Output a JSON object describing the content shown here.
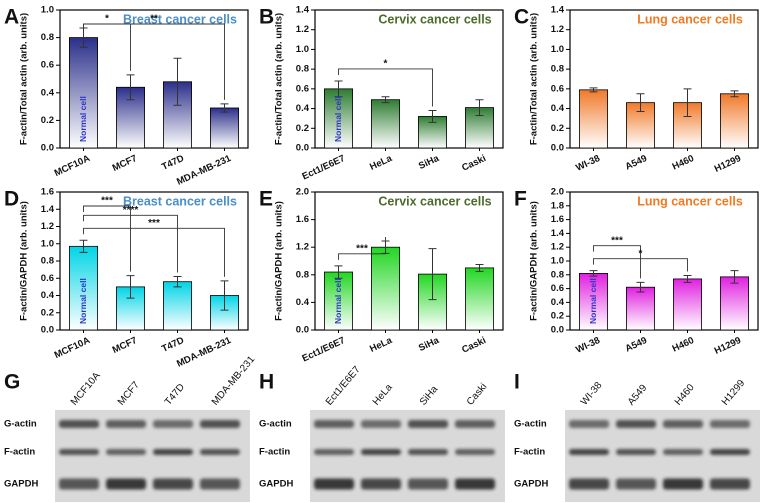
{
  "chart_data": [
    {
      "type": "bar",
      "panel": "A",
      "title": "Breast cancer cells",
      "title_color": "#4a8ec8",
      "ylabel": "F-actin/Total actin (arb. units)",
      "categories": [
        "MCF10A",
        "MCF7",
        "T47D",
        "MDA-MB-231"
      ],
      "values": [
        0.8,
        0.44,
        0.48,
        0.29
      ],
      "errors": [
        0.07,
        0.09,
        0.17,
        0.03
      ],
      "color": "#2b2f8a",
      "ylim": [
        0,
        1.0
      ],
      "yticks": [
        {
          "value": 0,
          "label": "0.0"
        },
        0.2,
        0.4,
        0.6,
        0.8,
        {
          "value": 1,
          "label": "1.0"
        }
      ],
      "bar_note": "Normal cell",
      "annotations": [
        {
          "from": "MCF10A",
          "to": "MCF7",
          "label": "*"
        },
        {
          "from": "MCF10A",
          "to": "MDA-MB-231",
          "label": "**"
        }
      ]
    },
    {
      "type": "bar",
      "panel": "B",
      "title": "Cervix cancer cells",
      "title_color": "#4b6b2a",
      "ylabel": "F-actin/Total actin (arb. units)",
      "categories": [
        "Ect1/E6E7",
        "HeLa",
        "SiHa",
        "Caski"
      ],
      "values": [
        0.6,
        0.49,
        0.32,
        0.41
      ],
      "errors": [
        0.08,
        0.03,
        0.06,
        0.08
      ],
      "color": "#2e7d32",
      "ylim": [
        0,
        1.4
      ],
      "yticks": [
        {
          "value": 0,
          "label": "0.0"
        },
        0.2,
        0.4,
        0.6,
        0.8,
        {
          "value": 1,
          "label": "1.0"
        },
        1.2,
        1.4
      ],
      "bar_note": "Normal cell",
      "annotations": [
        {
          "from": "Ect1/E6E7",
          "to": "SiHa",
          "label": "*"
        }
      ]
    },
    {
      "type": "bar",
      "panel": "C",
      "title": "Lung cancer cells",
      "title_color": "#f07a20",
      "ylabel": "F-actin/Total actin (arb. units)",
      "categories": [
        "WI-38",
        "A549",
        "H460",
        "H1299"
      ],
      "values": [
        0.59,
        0.46,
        0.46,
        0.55
      ],
      "errors": [
        0.02,
        0.09,
        0.14,
        0.03
      ],
      "color": "#f07a2a",
      "ylim": [
        0,
        1.4
      ],
      "yticks": [
        {
          "value": 0,
          "label": "0.0"
        },
        0.2,
        0.4,
        0.6,
        0.8,
        {
          "value": 1,
          "label": "1.0"
        },
        1.2,
        1.4
      ],
      "annotations": []
    },
    {
      "type": "bar",
      "panel": "D",
      "title": "Breast cancer cells",
      "title_color": "#4a8ec8",
      "ylabel": "F-actin/GAPDH (arb. units)",
      "categories": [
        "MCF10A",
        "MCF7",
        "T47D",
        "MDA-MB-231"
      ],
      "values": [
        0.97,
        0.5,
        0.56,
        0.4
      ],
      "errors": [
        0.07,
        0.13,
        0.06,
        0.17
      ],
      "color": "#00d4e6",
      "ylim": [
        0,
        1.6
      ],
      "yticks": [
        {
          "value": 0,
          "label": "0.0"
        },
        0.2,
        0.4,
        0.6,
        0.8,
        {
          "value": 1,
          "label": "1.0"
        },
        1.2,
        1.4,
        1.6
      ],
      "bar_note": "Normal cell",
      "annotations": [
        {
          "from": "MCF10A",
          "to": "MCF7",
          "label": "***"
        },
        {
          "from": "MCF10A",
          "to": "T47D",
          "label": "****"
        },
        {
          "from": "MCF10A",
          "to": "MDA-MB-231",
          "label": "***"
        }
      ]
    },
    {
      "type": "bar",
      "panel": "E",
      "title": "Cervix cancer cells",
      "title_color": "#4b6b2a",
      "ylabel": "F-actin/GAPDH (arb. units)",
      "categories": [
        "Ect1/E6E7",
        "HeLa",
        "SiHa",
        "Caski"
      ],
      "values": [
        0.84,
        1.2,
        0.81,
        0.9
      ],
      "errors": [
        0.09,
        0.09,
        0.37,
        0.05
      ],
      "color": "#22d622",
      "ylim": [
        0,
        2.0
      ],
      "yticks": [
        {
          "value": 0,
          "label": "0.0"
        },
        0.4,
        0.8,
        1.2,
        1.6,
        {
          "value": 2,
          "label": "2.0"
        }
      ],
      "bar_note": "Normal cell",
      "annotations": [
        {
          "from": "Ect1/E6E7",
          "to": "HeLa",
          "label": "***"
        }
      ]
    },
    {
      "type": "bar",
      "panel": "F",
      "title": "Lung cancer cells",
      "title_color": "#f07a20",
      "ylabel": "F-actin/GAPDH (arb. units)",
      "categories": [
        "WI-38",
        "A549",
        "H460",
        "H1299"
      ],
      "values": [
        0.82,
        0.62,
        0.74,
        0.77
      ],
      "errors": [
        0.04,
        0.07,
        0.05,
        0.09
      ],
      "color": "#e020e0",
      "ylim": [
        0,
        2.0
      ],
      "yticks": [
        {
          "value": 0,
          "label": "0.0"
        },
        0.2,
        0.4,
        0.6,
        0.8,
        {
          "value": 1,
          "label": "1.0"
        },
        1.2,
        1.4,
        1.6,
        1.8,
        {
          "value": 2,
          "label": "2.0"
        }
      ],
      "bar_note": "Normal cell",
      "annotations": [
        {
          "from": "WI-38",
          "to": "A549",
          "label": "***"
        },
        {
          "from": "WI-38",
          "to": "H460",
          "label": "*"
        }
      ]
    }
  ],
  "blots": [
    {
      "panel": "G",
      "lanes": [
        "MCF10A",
        "MCF7",
        "T47D",
        "MDA-MB-231"
      ],
      "rows": [
        "G-actin",
        "F-actin",
        "GAPDH"
      ]
    },
    {
      "panel": "H",
      "lanes": [
        "Ect1/E6E7",
        "HeLa",
        "SiHa",
        "Caski"
      ],
      "rows": [
        "G-actin",
        "F-actin",
        "GAPDH"
      ]
    },
    {
      "panel": "I",
      "lanes": [
        "WI-38",
        "A549",
        "H460",
        "H1299"
      ],
      "rows": [
        "G-actin",
        "F-actin",
        "GAPDH"
      ]
    }
  ]
}
